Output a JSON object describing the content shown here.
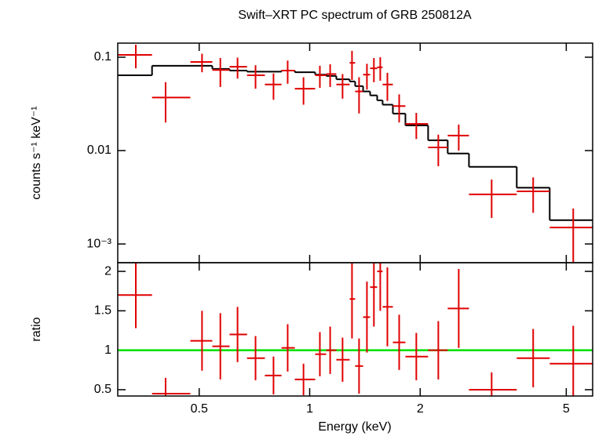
{
  "chart_data": [
    {
      "type": "errorbar",
      "title": "Swift–XRT PC spectrum of GRB 250812A",
      "ylabel": "counts s⁻¹ keV⁻¹",
      "xlog": true,
      "ylog": true,
      "xlim": [
        0.3,
        5.9
      ],
      "xticks": [
        0.5,
        1,
        2,
        5
      ],
      "ylim": [
        0.00063,
        0.1415
      ],
      "yticks": [
        0.1,
        0.01,
        {
          "value": 0.001,
          "label": "10⁻³"
        }
      ],
      "color": "#e00000",
      "model_color": "#000000",
      "energy": [
        0.336,
        0.405,
        0.509,
        0.571,
        0.636,
        0.712,
        0.797,
        0.871,
        0.962,
        1.066,
        1.137,
        1.229,
        1.304,
        1.363,
        1.432,
        1.496,
        1.557,
        1.628,
        1.753,
        1.952,
        2.241,
        2.547,
        3.131,
        4.063,
        5.224
      ],
      "energy_lo": [
        0.3,
        0.372,
        0.473,
        0.543,
        0.605,
        0.675,
        0.755,
        0.838,
        0.911,
        1.035,
        1.109,
        1.182,
        1.285,
        1.33,
        1.398,
        1.461,
        1.527,
        1.58,
        1.685,
        1.823,
        2.102,
        2.377,
        2.716,
        3.665,
        4.507
      ],
      "energy_hi": [
        0.372,
        0.473,
        0.543,
        0.605,
        0.675,
        0.755,
        0.838,
        0.911,
        1.035,
        1.109,
        1.182,
        1.285,
        1.33,
        1.398,
        1.461,
        1.527,
        1.58,
        1.685,
        1.823,
        2.102,
        2.377,
        2.716,
        3.665,
        4.507,
        5.9
      ],
      "values": [
        0.106,
        0.037,
        0.089,
        0.073,
        0.079,
        0.064,
        0.051,
        0.072,
        0.046,
        0.064,
        0.066,
        0.051,
        0.087,
        0.043,
        0.065,
        0.076,
        0.078,
        0.051,
        0.03,
        0.0193,
        0.0108,
        0.0145,
        0.0034,
        0.00366,
        0.0015
      ],
      "errors": [
        0.03,
        0.017,
        0.02,
        0.025,
        0.02,
        0.018,
        0.016,
        0.02,
        0.015,
        0.017,
        0.018,
        0.015,
        0.03,
        0.018,
        0.02,
        0.022,
        0.022,
        0.017,
        0.01,
        0.006,
        0.004,
        0.0045,
        0.0015,
        0.0015,
        0.0009
      ],
      "model": [
        0.064,
        0.081,
        0.081,
        0.075,
        0.072,
        0.07,
        0.07,
        0.072,
        0.069,
        0.065,
        0.063,
        0.058,
        0.055,
        0.049,
        0.043,
        0.039,
        0.0345,
        0.031,
        0.0249,
        0.0186,
        0.0129,
        0.0093,
        0.0067,
        0.004,
        0.0018
      ]
    },
    {
      "type": "ratio",
      "xlabel": "Energy (keV)",
      "ylabel": "ratio",
      "xlog": true,
      "ylog": false,
      "xlim": [
        0.3,
        5.9
      ],
      "xticks": [
        0.5,
        1,
        2,
        5
      ],
      "ylim": [
        0.42,
        2.11
      ],
      "yticks": [
        0.5,
        1,
        1.5,
        2
      ],
      "color": "#e00000",
      "reference_line": 1,
      "reference_color": "#00e000",
      "energy": [
        0.336,
        0.405,
        0.509,
        0.571,
        0.636,
        0.712,
        0.797,
        0.871,
        0.962,
        1.066,
        1.137,
        1.229,
        1.304,
        1.363,
        1.432,
        1.496,
        1.557,
        1.628,
        1.753,
        1.952,
        2.241,
        2.547,
        3.131,
        4.063,
        5.224
      ],
      "energy_lo": [
        0.3,
        0.372,
        0.473,
        0.543,
        0.605,
        0.675,
        0.755,
        0.838,
        0.911,
        1.035,
        1.109,
        1.182,
        1.285,
        1.33,
        1.398,
        1.461,
        1.527,
        1.58,
        1.685,
        1.823,
        2.102,
        2.377,
        2.716,
        3.665,
        4.507
      ],
      "energy_hi": [
        0.372,
        0.473,
        0.543,
        0.605,
        0.675,
        0.755,
        0.838,
        0.911,
        1.035,
        1.109,
        1.182,
        1.285,
        1.33,
        1.398,
        1.461,
        1.527,
        1.58,
        1.685,
        1.823,
        2.102,
        2.377,
        2.716,
        3.665,
        4.507,
        5.9
      ],
      "values": [
        1.7,
        0.45,
        1.12,
        1.05,
        1.2,
        0.9,
        0.68,
        1.03,
        0.63,
        0.95,
        1.0,
        0.88,
        1.65,
        0.8,
        1.42,
        1.8,
        2.0,
        1.55,
        1.1,
        0.92,
        1.0,
        1.53,
        0.5,
        0.9,
        0.83
      ],
      "errors": [
        0.42,
        0.2,
        0.38,
        0.42,
        0.35,
        0.28,
        0.24,
        0.3,
        0.2,
        0.28,
        0.3,
        0.28,
        0.5,
        0.35,
        0.45,
        0.5,
        0.5,
        0.5,
        0.35,
        0.3,
        0.37,
        0.5,
        0.22,
        0.37,
        0.48
      ]
    }
  ]
}
